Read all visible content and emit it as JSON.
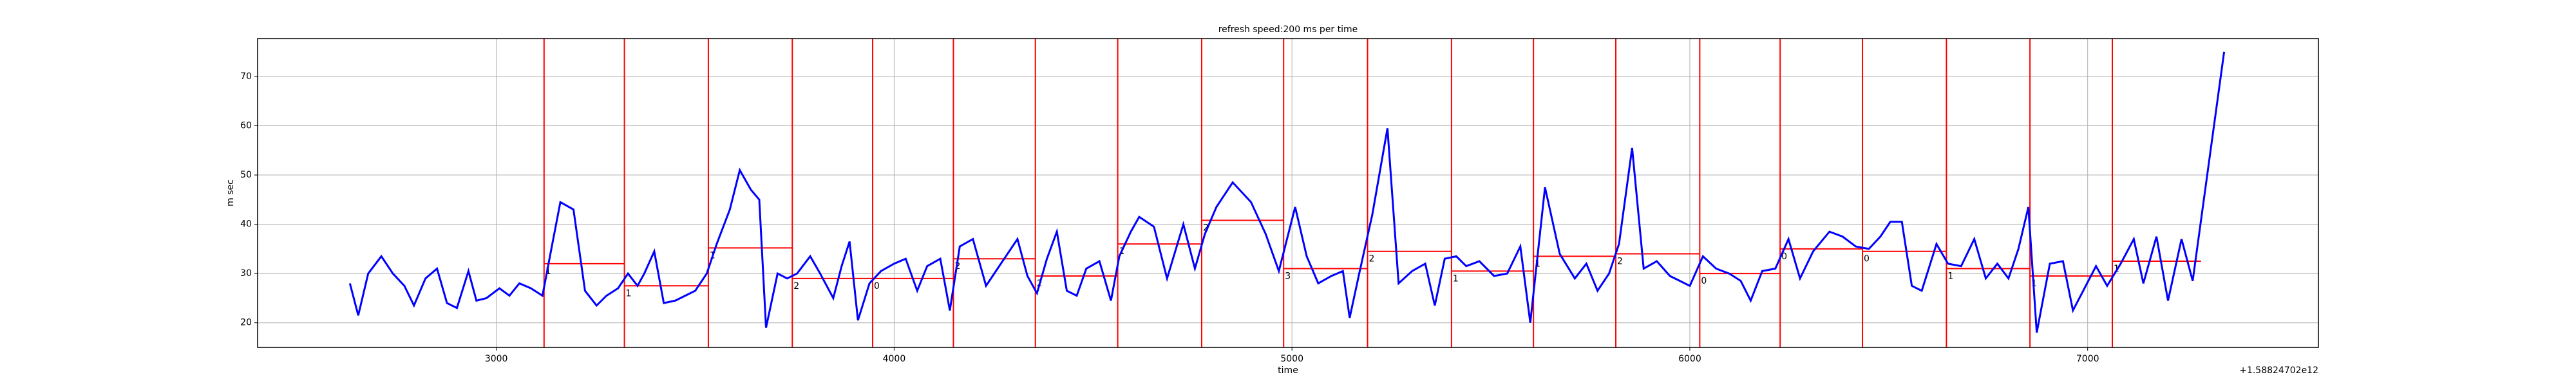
{
  "chart_data": {
    "type": "line",
    "title": "refresh speed:200 ms per time",
    "xlabel": "time",
    "ylabel": "m sec",
    "offset_text": "+1.58824702e12",
    "xlim": [
      2400,
      7580
    ],
    "ylim": [
      15,
      77.7
    ],
    "xticks": [
      3000,
      4000,
      5000,
      6000,
      7000
    ],
    "yticks": [
      20,
      30,
      40,
      50,
      60,
      70
    ],
    "grid": true,
    "series": [
      {
        "color": "#0000ff",
        "x": [
          2632,
          2653,
          2678,
          2711,
          2740,
          2769,
          2793,
          2822,
          2851,
          2876,
          2901,
          2930,
          2950,
          2975,
          3008,
          3033,
          3058,
          3087,
          3116,
          3136,
          3161,
          3194,
          3223,
          3252,
          3277,
          3306,
          3331,
          3355,
          3372,
          3397,
          3421,
          3450,
          3475,
          3500,
          3529,
          3554,
          3587,
          3612,
          3640,
          3661,
          3678,
          3707,
          3731,
          3756,
          3789,
          3814,
          3847,
          3868,
          3888,
          3909,
          3938,
          3967,
          4000,
          4029,
          4058,
          4083,
          4116,
          4140,
          4165,
          4198,
          4231,
          4260,
          4285,
          4310,
          4335,
          4359,
          4384,
          4409,
          4434,
          4459,
          4483,
          4516,
          4545,
          4566,
          4595,
          4616,
          4653,
          4686,
          4727,
          4756,
          4781,
          4810,
          4851,
          4897,
          4934,
          4967,
          5008,
          5037,
          5066,
          5099,
          5128,
          5145,
          5169,
          5202,
          5240,
          5268,
          5302,
          5335,
          5359,
          5384,
          5413,
          5438,
          5471,
          5508,
          5541,
          5574,
          5599,
          5636,
          5673,
          5711,
          5740,
          5768,
          5797,
          5822,
          5855,
          5884,
          5917,
          5950,
          5975,
          6000,
          6033,
          6066,
          6099,
          6128,
          6153,
          6182,
          6215,
          6248,
          6277,
          6310,
          6351,
          6384,
          6417,
          6450,
          6479,
          6504,
          6533,
          6558,
          6583,
          6620,
          6649,
          6682,
          6715,
          6744,
          6773,
          6801,
          6826,
          6851,
          6872,
          6905,
          6938,
          6963,
          6992,
          7021,
          7049,
          7083,
          7116,
          7140,
          7173,
          7202,
          7236,
          7264,
          7343
        ],
        "values": [
          28,
          21.5,
          30,
          33.5,
          30,
          27.5,
          23.5,
          29,
          31,
          24,
          23,
          30.5,
          24.5,
          25,
          27,
          25.5,
          28,
          27,
          25.5,
          34,
          44.5,
          43,
          26.5,
          23.5,
          25.5,
          27,
          30,
          27.5,
          30,
          34.5,
          24,
          24.5,
          25.5,
          26.5,
          30,
          36,
          43,
          51,
          47,
          45,
          19,
          30,
          29,
          30,
          33.5,
          30,
          25,
          31.5,
          36.5,
          20.5,
          28,
          30.5,
          32,
          33,
          26.5,
          31.5,
          33,
          22.5,
          35.5,
          37,
          27.5,
          31,
          34,
          37,
          29.5,
          26,
          33,
          38.5,
          26.5,
          25.5,
          31,
          32.5,
          24.5,
          33.5,
          38.5,
          41.5,
          39.5,
          29,
          40,
          31,
          38,
          43.5,
          48.5,
          44.5,
          38,
          30.5,
          43.5,
          33.5,
          28,
          29.5,
          30.5,
          21,
          30,
          42,
          59.5,
          28,
          30.5,
          32,
          23.5,
          33,
          33.5,
          31.5,
          32.5,
          29.5,
          30,
          35.5,
          20,
          47.5,
          34,
          29,
          32,
          26.5,
          30,
          36,
          55.5,
          31,
          32.5,
          29.5,
          28.5,
          27.5,
          33.5,
          31,
          30,
          28.5,
          24.5,
          30.5,
          31,
          37,
          29,
          34.5,
          38.5,
          37.5,
          35.5,
          35,
          37.5,
          40.5,
          40.5,
          27.5,
          26.5,
          36,
          32,
          31.5,
          37,
          29,
          32,
          29,
          35,
          43.5,
          18,
          32,
          32.5,
          22.5,
          27,
          31.5,
          27.5,
          32,
          37,
          28,
          37.5,
          24.5,
          37,
          28.5,
          75
        ]
      }
    ],
    "vline_color": "#ff0000",
    "vlines": [
      3120,
      3322,
      3533,
      3744,
      3946,
      4149,
      4355,
      4562,
      4773,
      4979,
      5190,
      5401,
      5607,
      5814,
      6025,
      6227,
      6434,
      6645,
      6855,
      7062
    ],
    "segments": [
      {
        "x": [
          3120,
          3322
        ],
        "value": 32,
        "label": "1"
      },
      {
        "x": [
          3322,
          3533
        ],
        "value": 27.5,
        "label": "1"
      },
      {
        "x": [
          3533,
          3744
        ],
        "value": 35.2,
        "label": "1"
      },
      {
        "x": [
          3744,
          3946
        ],
        "value": 29,
        "label": "2"
      },
      {
        "x": [
          3946,
          4149
        ],
        "value": 29,
        "label": "0"
      },
      {
        "x": [
          4149,
          4355
        ],
        "value": 33,
        "label": "2"
      },
      {
        "x": [
          4355,
          4562
        ],
        "value": 29.5,
        "label": "2"
      },
      {
        "x": [
          4562,
          4773
        ],
        "value": 36,
        "label": "1"
      },
      {
        "x": [
          4773,
          4979
        ],
        "value": 40.8,
        "label": "2"
      },
      {
        "x": [
          4979,
          5190
        ],
        "value": 31,
        "label": "3"
      },
      {
        "x": [
          5190,
          5401
        ],
        "value": 34.5,
        "label": "2"
      },
      {
        "x": [
          5401,
          5607
        ],
        "value": 30.5,
        "label": "1"
      },
      {
        "x": [
          5607,
          5814
        ],
        "value": 33.5,
        "label": "1"
      },
      {
        "x": [
          5814,
          6025
        ],
        "value": 34,
        "label": "2"
      },
      {
        "x": [
          6025,
          6227
        ],
        "value": 30,
        "label": "0"
      },
      {
        "x": [
          6227,
          6434
        ],
        "value": 35,
        "label": "0"
      },
      {
        "x": [
          6434,
          6645
        ],
        "value": 34.5,
        "label": "0"
      },
      {
        "x": [
          6645,
          6855
        ],
        "value": 31,
        "label": "1"
      },
      {
        "x": [
          6855,
          7062
        ],
        "value": 29.5,
        "label": "1"
      },
      {
        "x": [
          7062,
          7285
        ],
        "value": 32.5,
        "label": "1"
      }
    ]
  }
}
